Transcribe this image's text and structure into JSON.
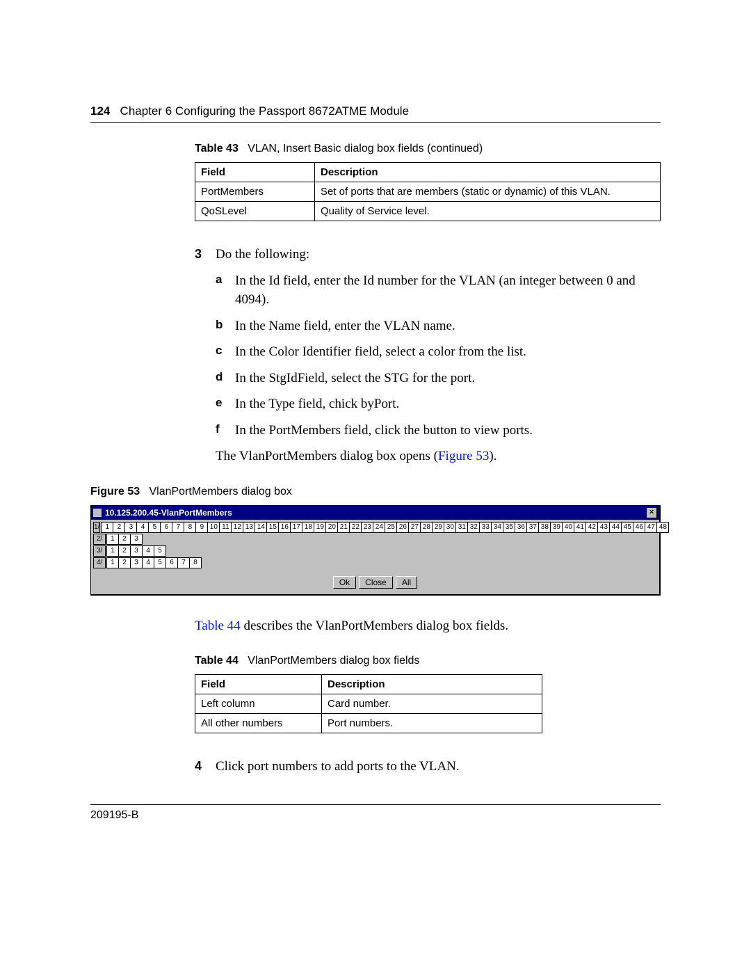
{
  "header": {
    "page_number": "124",
    "chapter": "Chapter 6  Configuring the Passport 8672ATME Module"
  },
  "table43": {
    "label": "Table 43",
    "caption": "VLAN, Insert Basic dialog box fields (continued)",
    "columns": [
      "Field",
      "Description"
    ],
    "rows": [
      [
        "PortMembers",
        "Set of ports that are members (static or dynamic) of this VLAN."
      ],
      [
        "QoSLevel",
        "Quality of Service level."
      ]
    ]
  },
  "steps": {
    "step3": {
      "marker": "3",
      "text": "Do the following:",
      "sub": [
        {
          "m": "a",
          "t": "In the Id field, enter the Id number for the VLAN (an integer between 0 and 4094)."
        },
        {
          "m": "b",
          "t": "In the Name field, enter the VLAN name."
        },
        {
          "m": "c",
          "t": "In the Color Identifier field, select a color from the list."
        },
        {
          "m": "d",
          "t": "In the StgIdField, select the STG for the port."
        },
        {
          "m": "e",
          "t": "In the Type field, chick byPort."
        },
        {
          "m": "f",
          "t": "In the PortMembers field, click the button to view ports."
        }
      ],
      "after_text": "The VlanPortMembers dialog box opens (",
      "after_link": "Figure 53",
      "after_tail": ")."
    },
    "step4": {
      "marker": "4",
      "text": "Click port numbers to add ports to the VLAN."
    }
  },
  "figure53": {
    "label": "Figure 53",
    "caption": "VlanPortMembers dialog box",
    "dialog": {
      "title": "10.125.200.45-VlanPortMembers",
      "close": "×",
      "rows": [
        {
          "slot": "1/",
          "count": 48
        },
        {
          "slot": "2/",
          "count": 3
        },
        {
          "slot": "3/",
          "count": 5
        },
        {
          "slot": "4/",
          "count": 8
        }
      ],
      "buttons": [
        "Ok",
        "Close",
        "All"
      ]
    }
  },
  "mid_text": {
    "pre_link": "Table 44",
    "tail": " describes the VlanPortMembers dialog box fields."
  },
  "table44": {
    "label": "Table 44",
    "caption": "VlanPortMembers dialog box fields",
    "columns": [
      "Field",
      "Description"
    ],
    "rows": [
      [
        "Left column",
        "Card number."
      ],
      [
        "All other numbers",
        "Port numbers."
      ]
    ]
  },
  "footer": "209195-B",
  "colors": {
    "link": "#0016d6",
    "titlebar_bg": "#000080",
    "dialog_bg": "#c0c0c0"
  }
}
